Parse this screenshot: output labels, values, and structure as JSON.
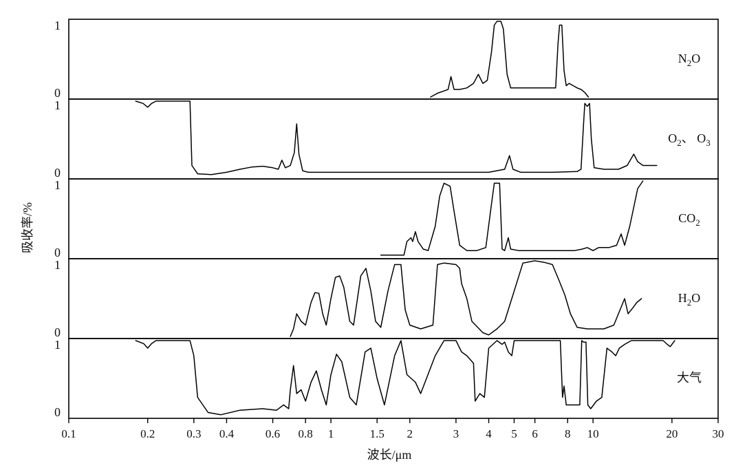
{
  "chart_data": {
    "type": "line",
    "x_scale": "log",
    "xlabel": "波长/μm",
    "ylabel": "吸收率/%",
    "xlim": [
      0.1,
      30
    ],
    "x_ticks": [
      {
        "value": 0.1,
        "label": "0.1"
      },
      {
        "value": 0.2,
        "label": "0.2"
      },
      {
        "value": 0.3,
        "label": "0.3"
      },
      {
        "value": 0.4,
        "label": "0.4"
      },
      {
        "value": 0.6,
        "label": "0.6"
      },
      {
        "value": 0.8,
        "label": "0.8"
      },
      {
        "value": 1,
        "label": "1"
      },
      {
        "value": 1.5,
        "label": "1.5"
      },
      {
        "value": 2,
        "label": "2"
      },
      {
        "value": 3,
        "label": "3"
      },
      {
        "value": 4,
        "label": "4"
      },
      {
        "value": 5,
        "label": "5"
      },
      {
        "value": 6,
        "label": "6"
      },
      {
        "value": 8,
        "label": "8"
      },
      {
        "value": 10,
        "label": "10"
      },
      {
        "value": 20,
        "label": "20"
      },
      {
        "value": 30,
        "label": "30"
      }
    ],
    "panels": [
      {
        "name": "N2O",
        "label": {
          "main": "N",
          "sub": "2",
          "tail": "O"
        },
        "y_ticks": [
          "1",
          "0"
        ],
        "ylim": [
          0,
          1
        ],
        "points": [
          [
            2.4,
            0
          ],
          [
            2.55,
            0.05
          ],
          [
            2.7,
            0.08
          ],
          [
            2.8,
            0.1
          ],
          [
            2.87,
            0.27
          ],
          [
            2.95,
            0.1
          ],
          [
            3.1,
            0.1
          ],
          [
            3.3,
            0.12
          ],
          [
            3.5,
            0.18
          ],
          [
            3.65,
            0.3
          ],
          [
            3.8,
            0.18
          ],
          [
            3.95,
            0.22
          ],
          [
            4.1,
            0.6
          ],
          [
            4.2,
            0.95
          ],
          [
            4.3,
            1
          ],
          [
            4.45,
            1
          ],
          [
            4.55,
            0.9
          ],
          [
            4.7,
            0.3
          ],
          [
            4.85,
            0.12
          ],
          [
            5.2,
            0.12
          ],
          [
            6.5,
            0.12
          ],
          [
            7.2,
            0.12
          ],
          [
            7.35,
            0.7
          ],
          [
            7.45,
            0.95
          ],
          [
            7.6,
            0.95
          ],
          [
            7.75,
            0.35
          ],
          [
            7.9,
            0.15
          ],
          [
            8.1,
            0.18
          ],
          [
            8.4,
            0.15
          ],
          [
            8.7,
            0.12
          ],
          [
            9.0,
            0.1
          ],
          [
            9.3,
            0.06
          ],
          [
            9.6,
            0
          ]
        ]
      },
      {
        "name": "O2, O3",
        "label": {
          "main": "O",
          "sub": "2",
          "mid": "、 O",
          "sub2": "3",
          "tail": ""
        },
        "y_ticks": [
          "1",
          "0"
        ],
        "ylim": [
          0,
          1
        ],
        "points": [
          [
            0.18,
            1
          ],
          [
            0.192,
            0.97
          ],
          [
            0.2,
            0.92
          ],
          [
            0.207,
            0.97
          ],
          [
            0.215,
            1
          ],
          [
            0.29,
            1
          ],
          [
            0.295,
            0.15
          ],
          [
            0.31,
            0.04
          ],
          [
            0.35,
            0.03
          ],
          [
            0.4,
            0.06
          ],
          [
            0.45,
            0.1
          ],
          [
            0.5,
            0.13
          ],
          [
            0.55,
            0.14
          ],
          [
            0.6,
            0.12
          ],
          [
            0.63,
            0.1
          ],
          [
            0.65,
            0.22
          ],
          [
            0.67,
            0.12
          ],
          [
            0.7,
            0.15
          ],
          [
            0.725,
            0.32
          ],
          [
            0.74,
            0.7
          ],
          [
            0.755,
            0.3
          ],
          [
            0.78,
            0.08
          ],
          [
            0.82,
            0.06
          ],
          [
            1,
            0.06
          ],
          [
            2,
            0.06
          ],
          [
            4,
            0.06
          ],
          [
            4.6,
            0.1
          ],
          [
            4.8,
            0.28
          ],
          [
            4.95,
            0.1
          ],
          [
            5.3,
            0.06
          ],
          [
            7,
            0.06
          ],
          [
            8.7,
            0.07
          ],
          [
            9.0,
            0.1
          ],
          [
            9.2,
            0.7
          ],
          [
            9.3,
            0.97
          ],
          [
            9.5,
            0.93
          ],
          [
            9.7,
            0.97
          ],
          [
            9.85,
            0.5
          ],
          [
            10.1,
            0.12
          ],
          [
            11,
            0.1
          ],
          [
            12.5,
            0.1
          ],
          [
            13.5,
            0.15
          ],
          [
            14.3,
            0.3
          ],
          [
            14.8,
            0.2
          ],
          [
            15.5,
            0.15
          ],
          [
            17.5,
            0.15
          ]
        ]
      },
      {
        "name": "CO2",
        "label": {
          "main": "CO",
          "sub": "2",
          "tail": ""
        },
        "y_ticks": [
          "1",
          "0"
        ],
        "ylim": [
          0,
          1
        ],
        "points": [
          [
            1.55,
            0.02
          ],
          [
            1.9,
            0.02
          ],
          [
            1.95,
            0.2
          ],
          [
            2.02,
            0.25
          ],
          [
            2.05,
            0.2
          ],
          [
            2.1,
            0.33
          ],
          [
            2.15,
            0.2
          ],
          [
            2.25,
            0.1
          ],
          [
            2.35,
            0.08
          ],
          [
            2.5,
            0.4
          ],
          [
            2.6,
            0.8
          ],
          [
            2.7,
            0.97
          ],
          [
            2.85,
            0.93
          ],
          [
            2.95,
            0.6
          ],
          [
            3.1,
            0.15
          ],
          [
            3.3,
            0.08
          ],
          [
            3.6,
            0.08
          ],
          [
            3.9,
            0.12
          ],
          [
            4.1,
            0.7
          ],
          [
            4.2,
            0.97
          ],
          [
            4.4,
            0.97
          ],
          [
            4.5,
            0.1
          ],
          [
            4.6,
            0.08
          ],
          [
            4.75,
            0.25
          ],
          [
            4.85,
            0.1
          ],
          [
            5.2,
            0.08
          ],
          [
            6,
            0.08
          ],
          [
            7.5,
            0.08
          ],
          [
            8.5,
            0.08
          ],
          [
            9.1,
            0.1
          ],
          [
            9.5,
            0.12
          ],
          [
            10,
            0.08
          ],
          [
            10.5,
            0.12
          ],
          [
            11.5,
            0.12
          ],
          [
            12.3,
            0.15
          ],
          [
            12.8,
            0.3
          ],
          [
            13.2,
            0.15
          ],
          [
            13.8,
            0.4
          ],
          [
            14.8,
            0.9
          ],
          [
            15.5,
            1
          ]
        ]
      },
      {
        "name": "H2O",
        "label": {
          "main": "H",
          "sub": "2",
          "tail": "O"
        },
        "y_ticks": [
          "1",
          "0"
        ],
        "ylim": [
          0,
          1
        ],
        "points": [
          [
            0.7,
            0
          ],
          [
            0.72,
            0.1
          ],
          [
            0.74,
            0.3
          ],
          [
            0.77,
            0.2
          ],
          [
            0.8,
            0.15
          ],
          [
            0.84,
            0.45
          ],
          [
            0.87,
            0.58
          ],
          [
            0.9,
            0.57
          ],
          [
            0.93,
            0.3
          ],
          [
            0.96,
            0.15
          ],
          [
            1,
            0.5
          ],
          [
            1.04,
            0.78
          ],
          [
            1.08,
            0.8
          ],
          [
            1.12,
            0.65
          ],
          [
            1.18,
            0.2
          ],
          [
            1.22,
            0.15
          ],
          [
            1.3,
            0.8
          ],
          [
            1.36,
            0.9
          ],
          [
            1.42,
            0.6
          ],
          [
            1.48,
            0.2
          ],
          [
            1.55,
            0.12
          ],
          [
            1.65,
            0.6
          ],
          [
            1.75,
            0.95
          ],
          [
            1.85,
            0.95
          ],
          [
            1.92,
            0.35
          ],
          [
            2.0,
            0.15
          ],
          [
            2.2,
            0.1
          ],
          [
            2.45,
            0.15
          ],
          [
            2.55,
            0.95
          ],
          [
            2.7,
            0.97
          ],
          [
            3.0,
            0.95
          ],
          [
            3.1,
            0.9
          ],
          [
            3.15,
            0.7
          ],
          [
            3.3,
            0.5
          ],
          [
            3.45,
            0.2
          ],
          [
            3.8,
            0.05
          ],
          [
            4.0,
            0.02
          ],
          [
            4.3,
            0.1
          ],
          [
            4.6,
            0.2
          ],
          [
            5,
            0.6
          ],
          [
            5.4,
            0.97
          ],
          [
            6,
            1
          ],
          [
            6.5,
            0.98
          ],
          [
            7.0,
            0.95
          ],
          [
            7.4,
            0.75
          ],
          [
            7.8,
            0.55
          ],
          [
            8.2,
            0.3
          ],
          [
            8.7,
            0.12
          ],
          [
            9.5,
            0.1
          ],
          [
            11,
            0.1
          ],
          [
            12,
            0.15
          ],
          [
            12.5,
            0.3
          ],
          [
            13.2,
            0.5
          ],
          [
            13.6,
            0.3
          ],
          [
            14.2,
            0.38
          ],
          [
            14.7,
            0.45
          ],
          [
            15.3,
            0.5
          ]
        ]
      },
      {
        "name": "大气",
        "label": {
          "main": "大气",
          "sub": "",
          "tail": ""
        },
        "y_ticks": [
          "1",
          "0"
        ],
        "ylim": [
          0,
          1
        ],
        "points": [
          [
            0.18,
            1
          ],
          [
            0.193,
            0.96
          ],
          [
            0.2,
            0.9
          ],
          [
            0.207,
            0.96
          ],
          [
            0.215,
            1
          ],
          [
            0.29,
            1
          ],
          [
            0.3,
            0.8
          ],
          [
            0.31,
            0.25
          ],
          [
            0.34,
            0.05
          ],
          [
            0.38,
            0.02
          ],
          [
            0.45,
            0.08
          ],
          [
            0.55,
            0.1
          ],
          [
            0.62,
            0.08
          ],
          [
            0.66,
            0.15
          ],
          [
            0.69,
            0.1
          ],
          [
            0.7,
            0.35
          ],
          [
            0.72,
            0.67
          ],
          [
            0.74,
            0.3
          ],
          [
            0.77,
            0.35
          ],
          [
            0.8,
            0.2
          ],
          [
            0.84,
            0.45
          ],
          [
            0.88,
            0.6
          ],
          [
            0.92,
            0.35
          ],
          [
            0.96,
            0.15
          ],
          [
            1.0,
            0.55
          ],
          [
            1.05,
            0.82
          ],
          [
            1.1,
            0.72
          ],
          [
            1.18,
            0.25
          ],
          [
            1.25,
            0.15
          ],
          [
            1.35,
            0.85
          ],
          [
            1.42,
            0.9
          ],
          [
            1.5,
            0.5
          ],
          [
            1.6,
            0.15
          ],
          [
            1.75,
            0.8
          ],
          [
            1.85,
            1
          ],
          [
            1.95,
            0.55
          ],
          [
            2.1,
            0.45
          ],
          [
            2.2,
            0.3
          ],
          [
            2.5,
            0.8
          ],
          [
            2.7,
            1
          ],
          [
            3.0,
            1
          ],
          [
            3.15,
            0.85
          ],
          [
            3.3,
            0.8
          ],
          [
            3.5,
            0.7
          ],
          [
            3.55,
            0.2
          ],
          [
            3.7,
            0.3
          ],
          [
            3.85,
            0.25
          ],
          [
            4.0,
            0.9
          ],
          [
            4.15,
            0.95
          ],
          [
            4.3,
            1
          ],
          [
            4.5,
            0.95
          ],
          [
            4.6,
            0.98
          ],
          [
            4.75,
            0.85
          ],
          [
            4.9,
            0.8
          ],
          [
            5.0,
            1
          ],
          [
            7.5,
            1
          ],
          [
            7.65,
            0.25
          ],
          [
            7.75,
            0.4
          ],
          [
            7.9,
            0.15
          ],
          [
            8.4,
            0.15
          ],
          [
            8.9,
            0.15
          ],
          [
            9.05,
            1
          ],
          [
            9.2,
            0.98
          ],
          [
            9.4,
            0.98
          ],
          [
            9.55,
            0.15
          ],
          [
            9.8,
            0.1
          ],
          [
            10.3,
            0.2
          ],
          [
            10.8,
            0.25
          ],
          [
            11.3,
            0.9
          ],
          [
            11.8,
            0.85
          ],
          [
            12.2,
            0.8
          ],
          [
            12.6,
            0.9
          ],
          [
            13.2,
            0.95
          ],
          [
            14,
            1
          ],
          [
            18.5,
            1
          ],
          [
            19.2,
            0.95
          ],
          [
            19.7,
            0.92
          ],
          [
            20.5,
            1
          ]
        ]
      }
    ]
  }
}
